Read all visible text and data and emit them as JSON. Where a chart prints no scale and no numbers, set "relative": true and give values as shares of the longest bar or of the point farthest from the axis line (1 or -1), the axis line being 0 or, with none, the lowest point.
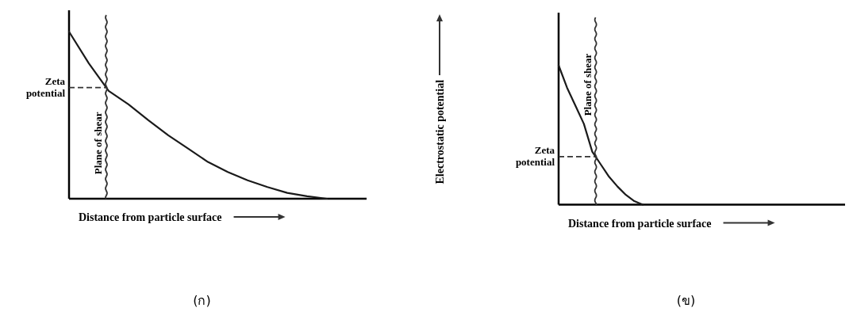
{
  "chart_data": [
    {
      "type": "line",
      "relative": true,
      "xlabel": "Distance from particle surface",
      "categories": [
        null,
        null,
        null,
        null,
        null,
        null,
        null,
        null,
        null,
        null,
        null,
        null,
        null,
        null
      ],
      "series": [
        {
          "color": "#1a1a1a",
          "values": [
            1.0,
            0.81,
            0.645,
            0.565,
            0.47,
            0.38,
            0.3,
            0.22,
            0.16,
            0.11,
            0.07,
            0.035,
            0.015,
            0
          ]
        }
      ],
      "ref_lines": [
        {
          "axis": "y",
          "value": 0.665,
          "label": "Zeta potential",
          "line_style": "dashed"
        }
      ],
      "annotations": [
        "Plane of shear",
        "(ก)"
      ]
    },
    {
      "type": "line",
      "relative": true,
      "xlabel": "Distance from particle surface",
      "ylabel": "Electrostatic potential",
      "categories": [
        null,
        null,
        null,
        null,
        null,
        null,
        null,
        null,
        null,
        null,
        null
      ],
      "series": [
        {
          "color": "#1a1a1a",
          "values": [
            1.0,
            0.84,
            0.71,
            0.58,
            0.38,
            0.29,
            0.2,
            0.13,
            0.07,
            0.025,
            0
          ]
        }
      ],
      "ref_lines": [
        {
          "axis": "y",
          "value": 0.344,
          "label": "Zeta potential",
          "line_style": "dashed"
        }
      ],
      "annotations": [
        "Plane of shear",
        "(ข)"
      ]
    }
  ]
}
